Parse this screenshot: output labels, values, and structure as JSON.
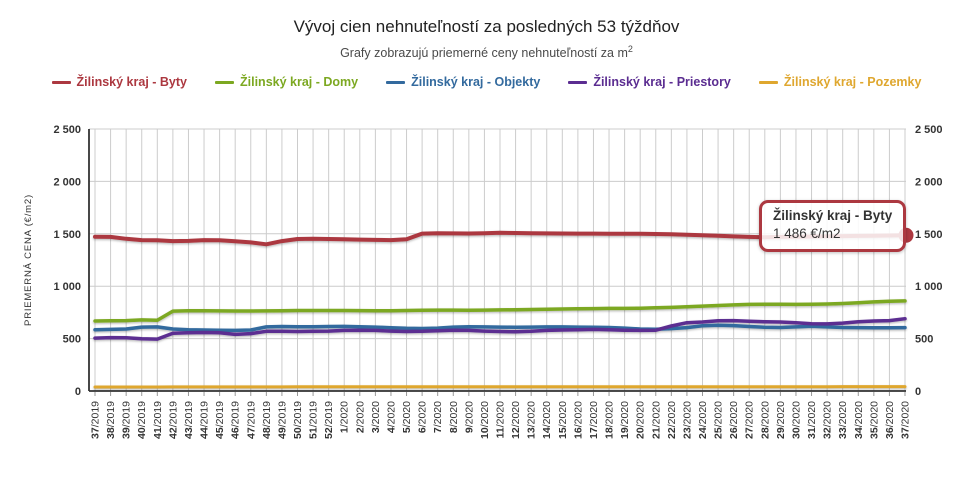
{
  "header": {
    "title": "Vývoj cien nehnuteľností za posledných 53 týždňov",
    "subtitle_text": "Grafy zobrazujú priemerné ceny nehnuteľností za m",
    "subtitle_sup": "2"
  },
  "tooltip": {
    "series": "Žilinský kraj - Byty",
    "value": "1 486 €/m2"
  },
  "chart_data": {
    "type": "line",
    "title": "Vývoj cien nehnuteľností za posledných 53 týždňov",
    "xlabel": "",
    "ylabel": "PRIEMERNÁ CENA (€/m2)",
    "ylim": [
      0,
      2500
    ],
    "yticks": [
      0,
      500,
      1000,
      1500,
      2000,
      2500
    ],
    "grid": true,
    "legend_position": "top",
    "categories": [
      "37/2019",
      "38/2019",
      "39/2019",
      "40/2019",
      "41/2019",
      "42/2019",
      "43/2019",
      "44/2019",
      "45/2019",
      "46/2019",
      "47/2019",
      "48/2019",
      "49/2019",
      "50/2019",
      "51/2019",
      "52/2019",
      "1/2020",
      "2/2020",
      "3/2020",
      "4/2020",
      "5/2020",
      "6/2020",
      "7/2020",
      "8/2020",
      "9/2020",
      "10/2020",
      "11/2020",
      "12/2020",
      "13/2020",
      "14/2020",
      "15/2020",
      "16/2020",
      "17/2020",
      "18/2020",
      "19/2020",
      "20/2020",
      "21/2020",
      "22/2020",
      "23/2020",
      "24/2020",
      "25/2020",
      "26/2020",
      "27/2020",
      "28/2020",
      "29/2020",
      "30/2020",
      "31/2020",
      "32/2020",
      "33/2020",
      "34/2020",
      "35/2020",
      "36/2020",
      "37/2020"
    ],
    "series": [
      {
        "name": "Žilinský kraj - Byty",
        "slug": "byty",
        "color": "#ac3840",
        "values": [
          1472,
          1470,
          1452,
          1440,
          1438,
          1430,
          1432,
          1440,
          1438,
          1428,
          1418,
          1400,
          1430,
          1450,
          1452,
          1450,
          1448,
          1445,
          1442,
          1440,
          1448,
          1502,
          1505,
          1504,
          1503,
          1506,
          1510,
          1508,
          1505,
          1504,
          1503,
          1502,
          1502,
          1501,
          1500,
          1500,
          1498,
          1495,
          1490,
          1486,
          1482,
          1475,
          1470,
          1468,
          1470,
          1472,
          1474,
          1476,
          1478,
          1480,
          1482,
          1484,
          1486
        ]
      },
      {
        "name": "Žilinský kraj - Domy",
        "slug": "domy",
        "color": "#7ca821",
        "values": [
          668,
          670,
          672,
          678,
          676,
          762,
          766,
          765,
          764,
          763,
          763,
          764,
          766,
          768,
          768,
          768,
          768,
          767,
          766,
          766,
          768,
          770,
          772,
          772,
          771,
          772,
          774,
          776,
          778,
          780,
          782,
          784,
          786,
          788,
          788,
          790,
          794,
          798,
          804,
          810,
          816,
          822,
          826,
          828,
          827,
          826,
          827,
          830,
          835,
          842,
          850,
          856,
          860
        ]
      },
      {
        "name": "Žilinský kraj - Objekty",
        "slug": "objekty",
        "color": "#336a9e",
        "values": [
          585,
          588,
          592,
          610,
          612,
          592,
          585,
          582,
          580,
          578,
          582,
          612,
          615,
          614,
          613,
          615,
          616,
          614,
          610,
          604,
          598,
          596,
          600,
          610,
          614,
          612,
          610,
          608,
          610,
          612,
          612,
          610,
          608,
          606,
          600,
          592,
          590,
          595,
          605,
          622,
          628,
          624,
          615,
          608,
          606,
          612,
          618,
          612,
          606,
          605,
          604,
          604,
          605
        ]
      },
      {
        "name": "Žilinský kraj - Priestory",
        "slug": "priestory",
        "color": "#5b2d91",
        "values": [
          505,
          510,
          508,
          498,
          495,
          552,
          556,
          558,
          555,
          540,
          548,
          570,
          570,
          568,
          570,
          572,
          578,
          580,
          578,
          572,
          568,
          570,
          575,
          580,
          578,
          572,
          568,
          565,
          570,
          578,
          582,
          585,
          588,
          585,
          580,
          578,
          580,
          620,
          652,
          658,
          670,
          672,
          665,
          660,
          658,
          652,
          642,
          640,
          648,
          660,
          668,
          672,
          690
        ]
      },
      {
        "name": "Žilinský kraj - Pozemky",
        "slug": "pozemky",
        "color": "#dfa72f",
        "values": [
          38,
          38,
          38,
          38,
          38,
          39,
          39,
          39,
          39,
          39,
          39,
          39,
          39,
          40,
          40,
          40,
          40,
          40,
          40,
          40,
          40,
          40,
          40,
          40,
          40,
          40,
          40,
          40,
          40,
          40,
          40,
          40,
          40,
          40,
          41,
          41,
          41,
          41,
          41,
          41,
          41,
          41,
          41,
          41,
          41,
          41,
          41,
          41,
          42,
          42,
          42,
          42,
          42
        ]
      }
    ],
    "last_point_marker": {
      "series": "Žilinský kraj - Byty",
      "value": 1486
    }
  }
}
